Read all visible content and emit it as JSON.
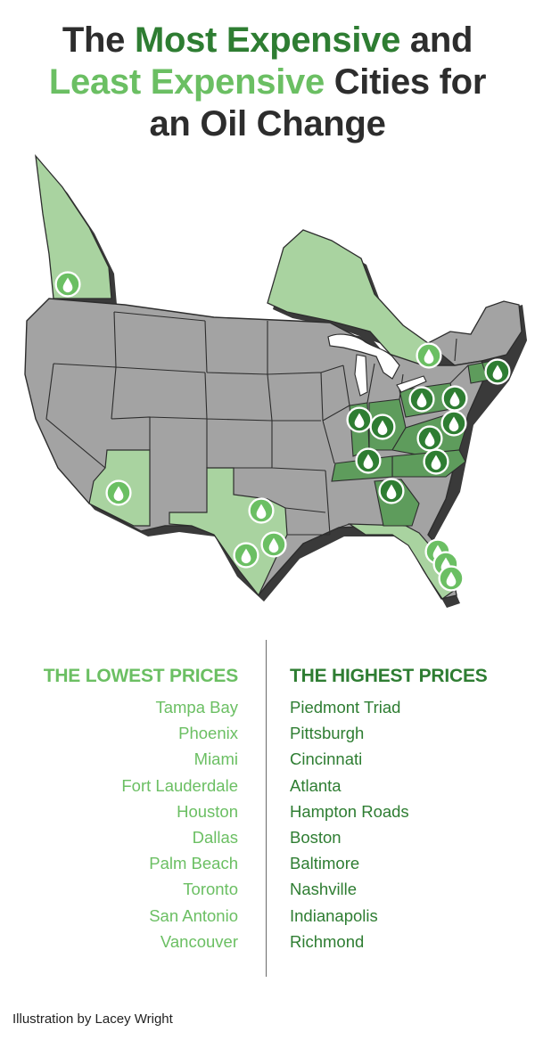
{
  "title": {
    "part1": "The ",
    "part2": "Most Expensive",
    "part3": " and",
    "part4": "Least Expensive",
    "part5": " Cities for",
    "part6": "an Oil Change"
  },
  "lowest": {
    "heading": "THE LOWEST PRICES",
    "cities": [
      "Tampa Bay",
      "Phoenix",
      "Miami",
      "Fort Lauderdale",
      "Houston",
      "Dallas",
      "Palm Beach",
      "Toronto",
      "San Antonio",
      "Vancouver"
    ]
  },
  "highest": {
    "heading": "THE HIGHEST PRICES",
    "cities": [
      "Piedmont Triad",
      "Pittsburgh",
      "Cincinnati",
      "Atlanta",
      "Hampton Roads",
      "Boston",
      "Baltimore",
      "Nashville",
      "Indianapolis",
      "Richmond"
    ]
  },
  "credit": "Illustration by Lacey Wright",
  "colors": {
    "dark_green": "#2e7d32",
    "light_green": "#6bbf63",
    "state_gray": "#a3a3a3",
    "low_region": "#a9d3a0",
    "high_region": "#5e9c5c"
  },
  "map": {
    "marker_icon": "oil-drop-icon",
    "low_price_marker_cities": [
      "Vancouver",
      "Phoenix",
      "Dallas",
      "Houston",
      "San Antonio",
      "Toronto",
      "Tampa Bay",
      "Palm Beach",
      "Fort Lauderdale",
      "Miami"
    ],
    "high_price_marker_cities": [
      "Boston",
      "Pittsburgh",
      "Indianapolis",
      "Cincinnati",
      "Baltimore",
      "Richmond",
      "Hampton Roads",
      "Piedmont Triad",
      "Nashville",
      "Atlanta"
    ]
  }
}
